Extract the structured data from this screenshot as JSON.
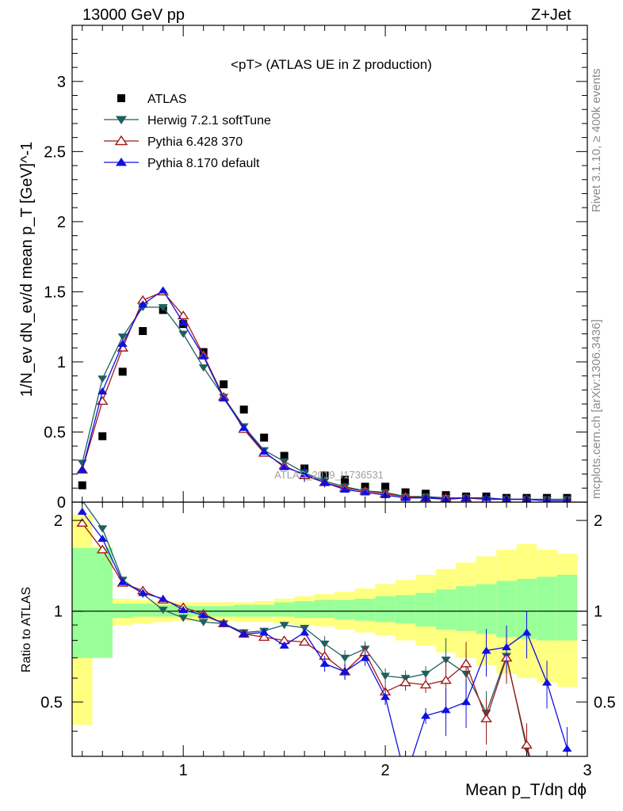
{
  "header": {
    "left": "13000 GeV pp",
    "right": "Z+Jet"
  },
  "side_text": {
    "rivet": "Rivet 3.1.10, ≥ 400k events",
    "mcplots": "mcplots.cern.ch [arXiv:1306.3436]"
  },
  "watermark": "ATLAS_2019_I1736531",
  "chart_data": {
    "type": "scatter",
    "title": "<pT> (ATLAS UE in Z production)",
    "xlabel": "Mean p_T/dη dϕ",
    "ylabel": "1/N_ev dN_ev/d mean p_T [GeV]^-1",
    "ratio_ylabel": "Ratio to ATLAS",
    "xlim": [
      0.45,
      3.0
    ],
    "ylim": [
      0,
      3.4
    ],
    "ratio_ylim": [
      0.33,
      2.3
    ],
    "x_ticks": [
      "1",
      "2",
      "3"
    ],
    "y_ticks": [
      "0",
      "0.5",
      "1",
      "1.5",
      "2",
      "2.5",
      "3"
    ],
    "ratio_ticks": [
      "0.5",
      "1",
      "2"
    ],
    "legend": [
      "ATLAS",
      "Herwig 7.2.1 softTune",
      "Pythia 6.428 370",
      "Pythia 8.170 default"
    ],
    "x": [
      0.5,
      0.6,
      0.7,
      0.8,
      0.9,
      1.0,
      1.1,
      1.2,
      1.3,
      1.4,
      1.5,
      1.6,
      1.7,
      1.8,
      1.9,
      2.0,
      2.1,
      2.2,
      2.3,
      2.4,
      2.5,
      2.6,
      2.7,
      2.8,
      2.9
    ],
    "series": [
      {
        "name": "ATLAS",
        "color": "#000000",
        "marker": "square",
        "values": [
          0.12,
          0.47,
          0.93,
          1.22,
          1.37,
          1.27,
          1.07,
          0.84,
          0.66,
          0.46,
          0.33,
          0.24,
          0.19,
          0.16,
          0.11,
          0.11,
          0.07,
          0.06,
          0.05,
          0.04,
          0.04,
          0.03,
          0.03,
          0.03,
          0.03
        ]
      },
      {
        "name": "Herwig 7.2.1 softTune",
        "color": "#1f5f5f",
        "marker": "triangle-down",
        "values": [
          0.28,
          0.88,
          1.18,
          1.39,
          1.39,
          1.2,
          0.96,
          0.75,
          0.54,
          0.37,
          0.29,
          0.21,
          0.15,
          0.11,
          0.08,
          0.07,
          0.04,
          0.04,
          0.03,
          0.03,
          0.02,
          0.02,
          0.02,
          0.02,
          0.02
        ],
        "ratio": [
          2.33,
          1.88,
          1.27,
          1.14,
          1.01,
          0.95,
          0.92,
          0.91,
          0.85,
          0.86,
          0.9,
          0.88,
          0.78,
          0.7,
          0.75,
          0.61,
          0.6,
          0.62,
          0.69,
          0.62,
          0.46,
          0.71,
          0.35,
          0.2,
          0.2
        ]
      },
      {
        "name": "Pythia 6.428 370",
        "color": "#a01818",
        "marker": "triangle-up-open",
        "values": [
          0.23,
          0.72,
          1.1,
          1.44,
          1.5,
          1.33,
          1.05,
          0.75,
          0.52,
          0.35,
          0.26,
          0.19,
          0.14,
          0.1,
          0.08,
          0.06,
          0.04,
          0.03,
          0.03,
          0.03,
          0.02,
          0.02,
          0.02,
          0.01,
          0.01
        ],
        "ratio": [
          1.96,
          1.6,
          1.24,
          1.17,
          1.09,
          1.03,
          0.98,
          0.91,
          0.84,
          0.82,
          0.8,
          0.79,
          0.71,
          0.63,
          0.73,
          0.54,
          0.58,
          0.57,
          0.59,
          0.67,
          0.44,
          0.7,
          0.36,
          0.2,
          0.2
        ]
      },
      {
        "name": "Pythia 8.170 default",
        "color": "#1010e0",
        "marker": "triangle-up",
        "values": [
          0.23,
          0.79,
          1.13,
          1.41,
          1.51,
          1.28,
          1.04,
          0.74,
          0.53,
          0.36,
          0.25,
          0.2,
          0.14,
          0.09,
          0.07,
          0.05,
          0.03,
          0.03,
          0.02,
          0.03,
          0.03,
          0.02,
          0.02,
          0.01,
          0.01
        ],
        "ratio": [
          2.14,
          1.74,
          1.25,
          1.15,
          1.1,
          1.01,
          0.97,
          0.91,
          0.84,
          0.85,
          0.77,
          0.85,
          0.67,
          0.63,
          0.7,
          0.52,
          0.28,
          0.45,
          0.47,
          0.5,
          0.74,
          0.76,
          0.85,
          0.58,
          0.35
        ]
      }
    ],
    "ratio_band_green": [
      [
        0.7,
        1.62
      ],
      [
        0.7,
        1.62
      ],
      [
        0.95,
        1.06
      ],
      [
        0.96,
        1.06
      ],
      [
        0.96,
        1.05
      ],
      [
        0.96,
        1.04
      ],
      [
        0.96,
        1.04
      ],
      [
        0.96,
        1.04
      ],
      [
        0.96,
        1.05
      ],
      [
        0.96,
        1.05
      ],
      [
        0.96,
        1.07
      ],
      [
        0.95,
        1.08
      ],
      [
        0.95,
        1.09
      ],
      [
        0.94,
        1.09
      ],
      [
        0.93,
        1.1
      ],
      [
        0.92,
        1.12
      ],
      [
        0.91,
        1.13
      ],
      [
        0.89,
        1.15
      ],
      [
        0.87,
        1.18
      ],
      [
        0.86,
        1.21
      ],
      [
        0.84,
        1.23
      ],
      [
        0.82,
        1.26
      ],
      [
        0.81,
        1.28
      ],
      [
        0.8,
        1.3
      ],
      [
        0.8,
        1.32
      ]
    ],
    "ratio_band_yellow": [
      [
        0.42,
        2.09
      ],
      [
        0.8,
        1.64
      ],
      [
        0.9,
        1.1
      ],
      [
        0.91,
        1.09
      ],
      [
        0.92,
        1.08
      ],
      [
        0.93,
        1.07
      ],
      [
        0.93,
        1.07
      ],
      [
        0.93,
        1.07
      ],
      [
        0.92,
        1.07
      ],
      [
        0.92,
        1.08
      ],
      [
        0.91,
        1.1
      ],
      [
        0.9,
        1.12
      ],
      [
        0.89,
        1.14
      ],
      [
        0.87,
        1.16
      ],
      [
        0.85,
        1.19
      ],
      [
        0.83,
        1.23
      ],
      [
        0.8,
        1.27
      ],
      [
        0.77,
        1.32
      ],
      [
        0.73,
        1.38
      ],
      [
        0.7,
        1.45
      ],
      [
        0.66,
        1.52
      ],
      [
        0.62,
        1.6
      ],
      [
        0.6,
        1.67
      ],
      [
        0.58,
        1.6
      ],
      [
        0.56,
        1.55
      ]
    ]
  }
}
